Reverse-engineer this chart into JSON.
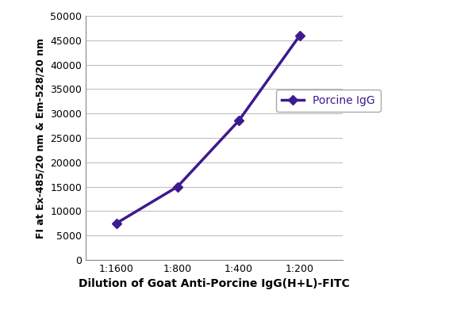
{
  "x_labels": [
    "1:1600",
    "1:800",
    "1:400",
    "1:200"
  ],
  "x_positions": [
    1,
    2,
    3,
    4
  ],
  "y_values": [
    7500,
    15000,
    28500,
    46000
  ],
  "line_color": "#3d1a8e",
  "marker_style": "D",
  "marker_size": 6,
  "marker_face_color": "#3d1a8e",
  "line_width": 2.5,
  "legend_label": "Porcine IgG",
  "xlabel": "Dilution of Goat Anti-Porcine IgG(H+L)-FITC",
  "ylabel": "FI at Ex-485/20 nm & Em-528/20 nm",
  "ylim": [
    0,
    50000
  ],
  "yticks": [
    0,
    5000,
    10000,
    15000,
    20000,
    25000,
    30000,
    35000,
    40000,
    45000,
    50000
  ],
  "xlabel_fontsize": 10,
  "ylabel_fontsize": 9,
  "tick_fontsize": 9,
  "legend_fontsize": 10,
  "bg_color": "#ffffff",
  "grid_color": "#c0c0c0",
  "grid_linewidth": 0.8,
  "figure_width": 6.0,
  "figure_height": 4.0
}
